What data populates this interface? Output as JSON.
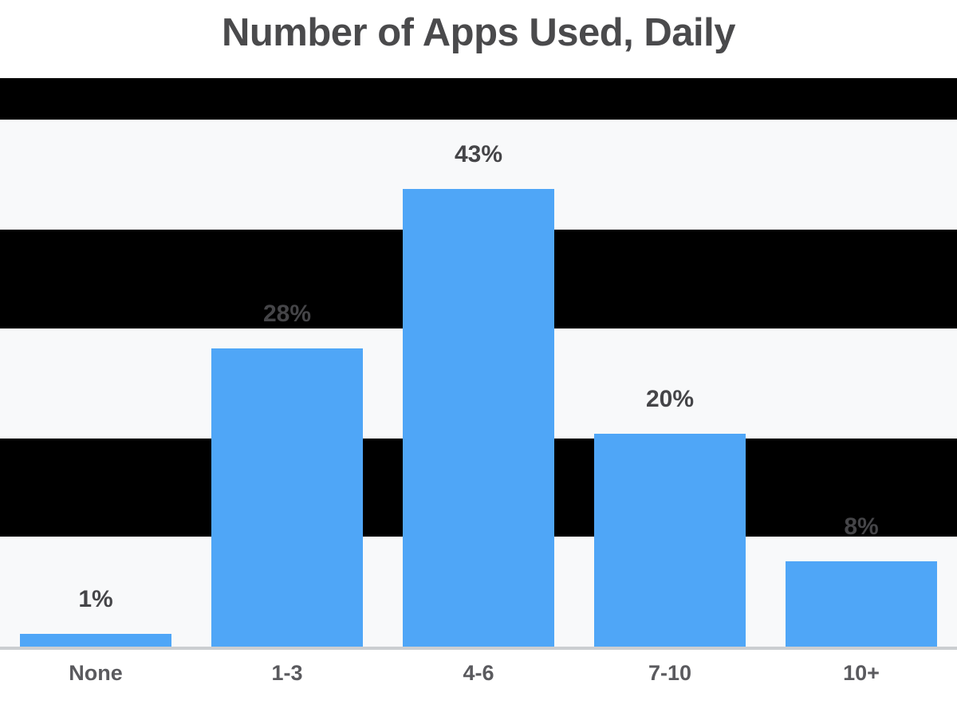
{
  "title": "Number of Apps Used, Daily",
  "colors": {
    "background": "#FFFFFF",
    "bar": "#4FA6F7",
    "band_light": "#F8F9FA",
    "band_dark": "#000000",
    "title_text": "#4A4A4C",
    "value_text": "#454548",
    "axis_text": "#5A5A5E",
    "baseline_rule": "#CBCED1"
  },
  "chart_data": {
    "type": "bar",
    "title": "Number of Apps Used, Daily",
    "categories": [
      "None",
      "1-3",
      "4-6",
      "7-10",
      "10+"
    ],
    "values": [
      1,
      28,
      43,
      20,
      8
    ],
    "value_labels": [
      "1%",
      "28%",
      "43%",
      "20%",
      "8%"
    ],
    "unit": "%",
    "xlabel": "",
    "ylabel": "",
    "ylim": [
      0,
      53
    ],
    "gridband_step_pct": 10,
    "grid": "alternating horizontal bands (black / light gray)",
    "legend": "none",
    "bar_color": "#4FA6F7"
  }
}
